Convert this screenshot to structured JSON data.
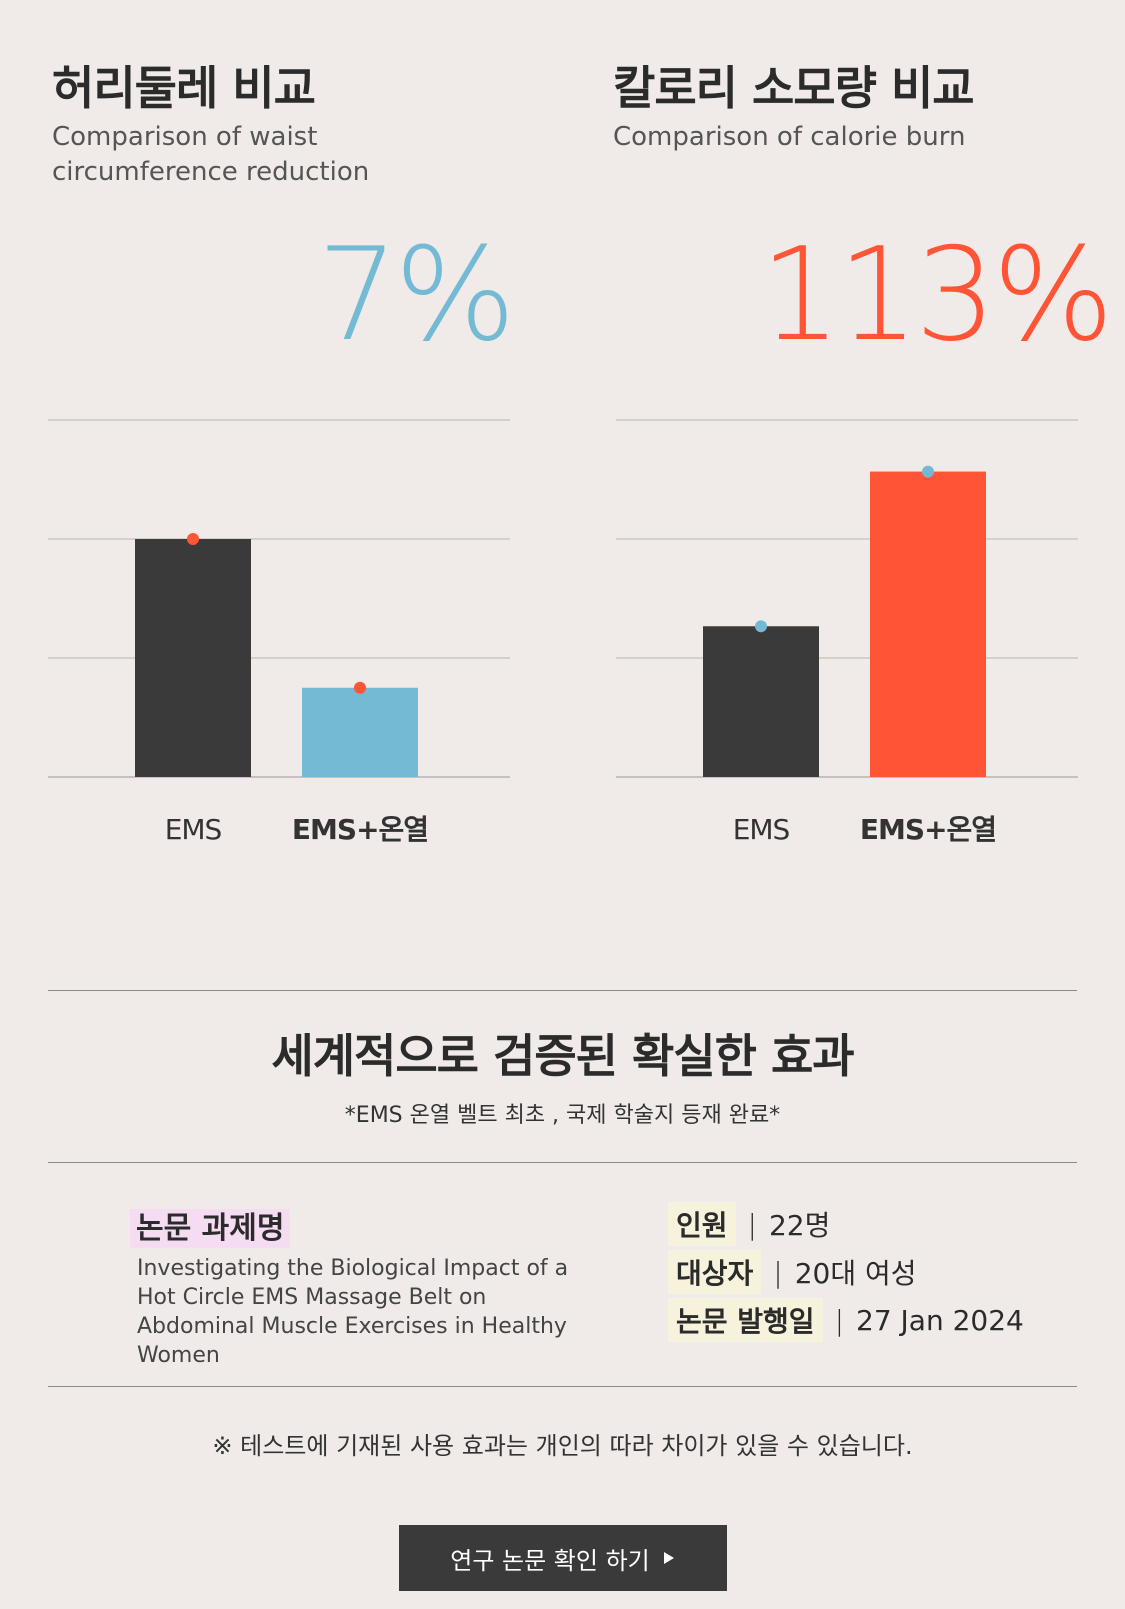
{
  "chart_data": [
    {
      "type": "bar",
      "title": "허리둘레 비교",
      "subtitle": "Comparison of waist circumference reduction",
      "highlight": "7%",
      "categories": [
        "EMS",
        "EMS+온열"
      ],
      "values": [
        60,
        22.5
      ],
      "ylim": [
        0,
        90
      ],
      "grid": true,
      "bar_colors": [
        "#3a3a3a",
        "#75bad5"
      ],
      "dot_color": "#ff5436",
      "highlight_color": "#75bad5"
    },
    {
      "type": "bar",
      "title": "칼로리 소모량 비교",
      "subtitle": "Comparison of calorie burn",
      "highlight": "113%",
      "categories": [
        "EMS",
        "EMS+온열"
      ],
      "values": [
        38,
        77
      ],
      "ylim": [
        0,
        90
      ],
      "grid": true,
      "bar_colors": [
        "#3a3a3a",
        "#ff5436"
      ],
      "dot_color": "#75bad5",
      "highlight_color": "#ff5436"
    }
  ],
  "section": {
    "title": "세계적으로 검증된 확실한 효과",
    "subtitle": "*EMS 온열 벨트 최초 , 국제 학술지 등재 완료*"
  },
  "paper": {
    "label": "논문 과제명",
    "title": "Investigating the Biological Impact of a Hot Circle EMS Massage Belt on Abdominal Muscle Exercises in Healthy Women"
  },
  "info": [
    {
      "key": "인원",
      "value": "22명"
    },
    {
      "key": "대상자",
      "value": "20대 여성"
    },
    {
      "key": "논문 발행일",
      "value": "27 Jan 2024"
    }
  ],
  "notice": "※ 테스트에 기재된 사용 효과는 개인의 따라 차이가 있을 수 있습니다.",
  "cta": {
    "label": "연구 논문 확인 하기",
    "icon": "play-triangle-icon"
  },
  "separator": "|"
}
